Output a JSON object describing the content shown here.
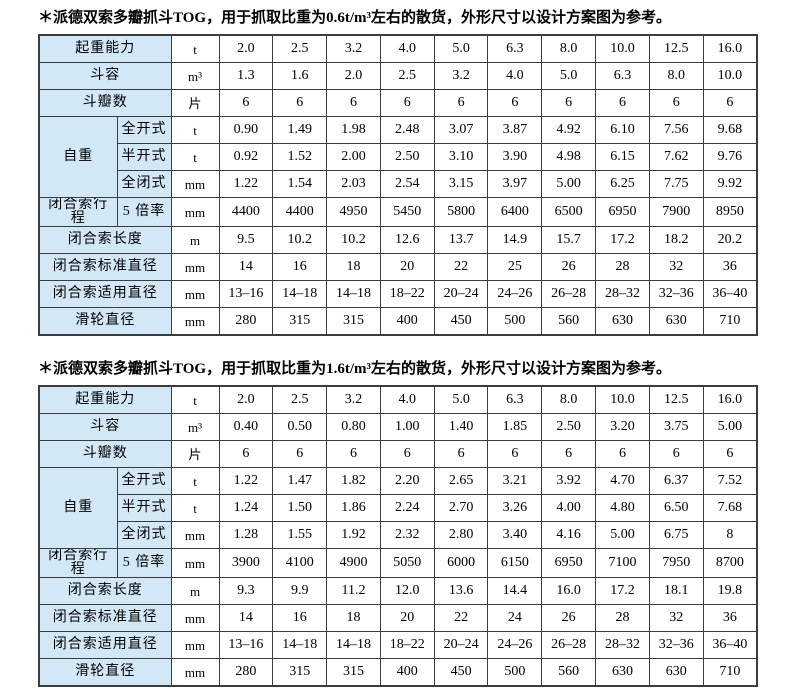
{
  "page": {
    "background": "#ffffff",
    "label_bg": "#d2e8f7",
    "border_color": "#3c3c3c"
  },
  "tables": [
    {
      "caption": "＊派德双索多瓣抓斗TOG，用于抓取比重为0.6t/m³左右的散货，外形尺寸以设计方案图为参考。",
      "rows": [
        {
          "label": "起重能力",
          "sublabel": null,
          "unit": "t",
          "values": [
            "2.0",
            "2.5",
            "3.2",
            "4.0",
            "5.0",
            "6.3",
            "8.0",
            "10.0",
            "12.5",
            "16.0"
          ]
        },
        {
          "label": "斗容",
          "sublabel": null,
          "unit": "m³",
          "values": [
            "1.3",
            "1.6",
            "2.0",
            "2.5",
            "3.2",
            "4.0",
            "5.0",
            "6.3",
            "8.0",
            "10.0"
          ]
        },
        {
          "label": "斗瓣数",
          "sublabel": null,
          "unit": "片",
          "values": [
            "6",
            "6",
            "6",
            "6",
            "6",
            "6",
            "6",
            "6",
            "6",
            "6"
          ]
        },
        {
          "label": "自重",
          "sublabel": "全开式",
          "unit": "t",
          "values": [
            "0.90",
            "1.49",
            "1.98",
            "2.48",
            "3.07",
            "3.87",
            "4.92",
            "6.10",
            "7.56",
            "9.68"
          ]
        },
        {
          "label": null,
          "sublabel": "半开式",
          "unit": "t",
          "values": [
            "0.92",
            "1.52",
            "2.00",
            "2.50",
            "3.10",
            "3.90",
            "4.98",
            "6.15",
            "7.62",
            "9.76"
          ]
        },
        {
          "label": null,
          "sublabel": "全闭式",
          "unit": "mm",
          "values": [
            "1.22",
            "1.54",
            "2.03",
            "2.54",
            "3.15",
            "3.97",
            "5.00",
            "6.25",
            "7.75",
            "9.92"
          ]
        },
        {
          "label": "闭合索行程",
          "sublabel": "5 倍率",
          "unit": "mm",
          "values": [
            "4400",
            "4400",
            "4950",
            "5450",
            "5800",
            "6400",
            "6500",
            "6950",
            "7900",
            "8950"
          ]
        },
        {
          "label": "闭合索长度",
          "sublabel": null,
          "unit": "m",
          "values": [
            "9.5",
            "10.2",
            "10.2",
            "12.6",
            "13.7",
            "14.9",
            "15.7",
            "17.2",
            "18.2",
            "20.2"
          ]
        },
        {
          "label": "闭合索标准直径",
          "sublabel": null,
          "unit": "mm",
          "values": [
            "14",
            "16",
            "18",
            "20",
            "22",
            "25",
            "26",
            "28",
            "32",
            "36"
          ]
        },
        {
          "label": "闭合索适用直径",
          "sublabel": null,
          "unit": "mm",
          "values": [
            "13–16",
            "14–18",
            "14–18",
            "18–22",
            "20–24",
            "24–26",
            "26–28",
            "28–32",
            "32–36",
            "36–40"
          ]
        },
        {
          "label": "滑轮直径",
          "sublabel": null,
          "unit": "mm",
          "values": [
            "280",
            "315",
            "315",
            "400",
            "450",
            "500",
            "560",
            "630",
            "630",
            "710"
          ]
        }
      ]
    },
    {
      "caption": "＊派德双索多瓣抓斗TOG，用于抓取比重为1.6t/m³左右的散货，外形尺寸以设计方案图为参考。",
      "rows": [
        {
          "label": "起重能力",
          "sublabel": null,
          "unit": "t",
          "values": [
            "2.0",
            "2.5",
            "3.2",
            "4.0",
            "5.0",
            "6.3",
            "8.0",
            "10.0",
            "12.5",
            "16.0"
          ]
        },
        {
          "label": "斗容",
          "sublabel": null,
          "unit": "m³",
          "values": [
            "0.40",
            "0.50",
            "0.80",
            "1.00",
            "1.40",
            "1.85",
            "2.50",
            "3.20",
            "3.75",
            "5.00"
          ]
        },
        {
          "label": "斗瓣数",
          "sublabel": null,
          "unit": "片",
          "values": [
            "6",
            "6",
            "6",
            "6",
            "6",
            "6",
            "6",
            "6",
            "6",
            "6"
          ]
        },
        {
          "label": "自重",
          "sublabel": "全开式",
          "unit": "t",
          "values": [
            "1.22",
            "1.47",
            "1.82",
            "2.20",
            "2.65",
            "3.21",
            "3.92",
            "4.70",
            "6.37",
            "7.52"
          ]
        },
        {
          "label": null,
          "sublabel": "半开式",
          "unit": "t",
          "values": [
            "1.24",
            "1.50",
            "1.86",
            "2.24",
            "2.70",
            "3.26",
            "4.00",
            "4.80",
            "6.50",
            "7.68"
          ]
        },
        {
          "label": null,
          "sublabel": "全闭式",
          "unit": "mm",
          "values": [
            "1.28",
            "1.55",
            "1.92",
            "2.32",
            "2.80",
            "3.40",
            "4.16",
            "5.00",
            "6.75",
            "8"
          ]
        },
        {
          "label": "闭合索行程",
          "sublabel": "5 倍率",
          "unit": "mm",
          "values": [
            "3900",
            "4100",
            "4900",
            "5050",
            "6000",
            "6150",
            "6950",
            "7100",
            "7950",
            "8700"
          ]
        },
        {
          "label": "闭合索长度",
          "sublabel": null,
          "unit": "m",
          "values": [
            "9.3",
            "9.9",
            "11.2",
            "12.0",
            "13.6",
            "14.4",
            "16.0",
            "17.2",
            "18.1",
            "19.8"
          ]
        },
        {
          "label": "闭合索标准直径",
          "sublabel": null,
          "unit": "mm",
          "values": [
            "14",
            "16",
            "18",
            "20",
            "22",
            "24",
            "26",
            "28",
            "32",
            "36"
          ]
        },
        {
          "label": "闭合索适用直径",
          "sublabel": null,
          "unit": "mm",
          "values": [
            "13–16",
            "14–18",
            "14–18",
            "18–22",
            "20–24",
            "24–26",
            "26–28",
            "28–32",
            "32–36",
            "36–40"
          ]
        },
        {
          "label": "滑轮直径",
          "sublabel": null,
          "unit": "mm",
          "values": [
            "280",
            "315",
            "315",
            "400",
            "450",
            "500",
            "560",
            "630",
            "630",
            "710"
          ]
        }
      ]
    }
  ]
}
